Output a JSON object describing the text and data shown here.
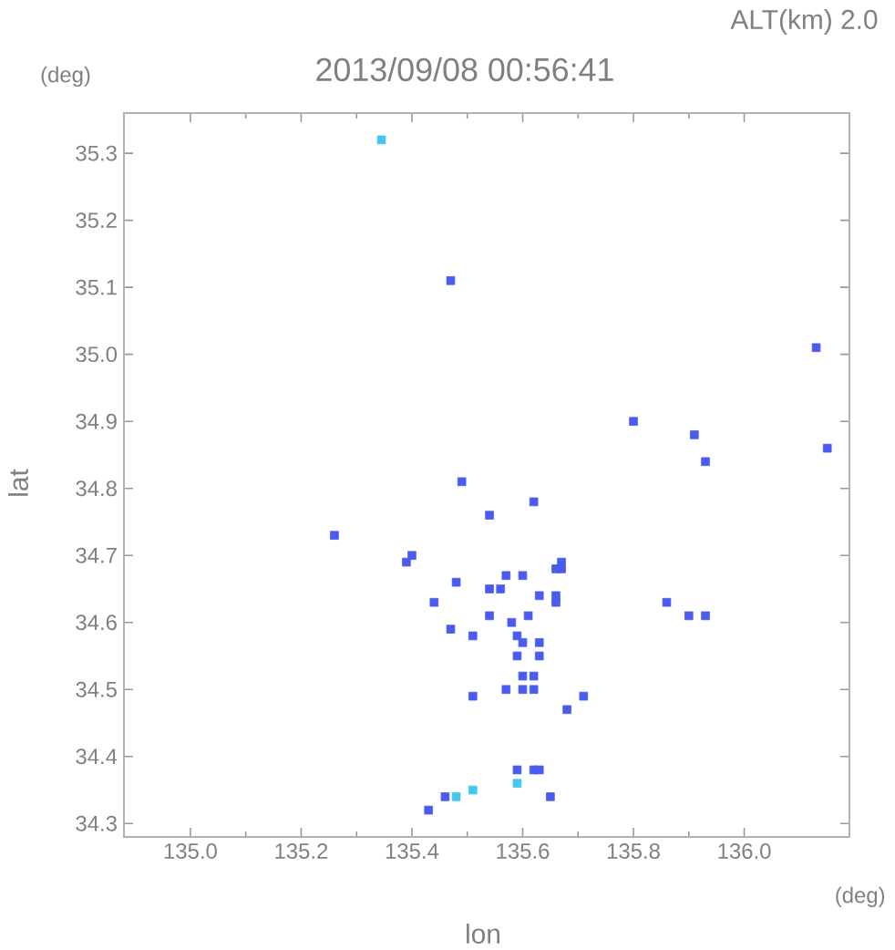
{
  "chart_data": {
    "type": "scatter",
    "title": "2013/09/08 00:56:41",
    "subtitle": "ALT(km) 2.0",
    "xlabel": "lon",
    "ylabel": "lat",
    "annotations": [
      "(deg)",
      "(deg)"
    ],
    "marker": "square",
    "xlim": [
      134.88,
      136.19
    ],
    "ylim": [
      34.28,
      35.36
    ],
    "xticks": [
      {
        "value": 135.0,
        "label": "135.0"
      },
      {
        "value": 135.2,
        "label": "135.2"
      },
      {
        "value": 135.4,
        "label": "135.4"
      },
      {
        "value": 135.6,
        "label": "135.6"
      },
      {
        "value": 135.8,
        "label": "135.8"
      },
      {
        "value": 136.0,
        "label": "136.0"
      }
    ],
    "yticks": [
      {
        "value": 34.3,
        "label": "34.3"
      },
      {
        "value": 34.4,
        "label": "34.4"
      },
      {
        "value": 34.5,
        "label": "34.5"
      },
      {
        "value": 34.6,
        "label": "34.6"
      },
      {
        "value": 34.7,
        "label": "34.7"
      },
      {
        "value": 34.8,
        "label": "34.8"
      },
      {
        "value": 34.9,
        "label": "34.9"
      },
      {
        "value": 35.0,
        "label": "35.0"
      },
      {
        "value": 35.1,
        "label": "35.1"
      },
      {
        "value": 35.2,
        "label": "35.2"
      },
      {
        "value": 35.3,
        "label": "35.3"
      }
    ],
    "series": [
      {
        "color": "#4a5cf0",
        "x": [
          135.47,
          136.13,
          136.15,
          135.26,
          135.8,
          135.91,
          135.93,
          135.49,
          135.62,
          135.54,
          135.4,
          135.39,
          135.48,
          135.57,
          135.6,
          135.67,
          135.66,
          135.67,
          135.54,
          135.56,
          135.63,
          135.66,
          135.66,
          135.44,
          135.86,
          135.9,
          135.93,
          135.61,
          135.54,
          135.58,
          135.47,
          135.51,
          135.59,
          135.63,
          135.6,
          135.59,
          135.63,
          135.6,
          135.62,
          135.6,
          135.62,
          135.57,
          135.51,
          135.68,
          135.71,
          135.62,
          135.63,
          135.59,
          135.65,
          135.46,
          135.43
        ],
        "values": [
          35.11,
          35.01,
          34.86,
          34.73,
          34.9,
          34.88,
          34.84,
          34.81,
          34.78,
          34.76,
          34.7,
          34.69,
          34.66,
          34.67,
          34.67,
          34.69,
          34.68,
          34.68,
          34.65,
          34.65,
          34.64,
          34.64,
          34.63,
          34.63,
          34.63,
          34.61,
          34.61,
          34.61,
          34.61,
          34.6,
          34.59,
          34.58,
          34.58,
          34.57,
          34.57,
          34.55,
          34.55,
          34.52,
          34.52,
          34.5,
          34.5,
          34.5,
          34.49,
          34.47,
          34.49,
          34.38,
          34.38,
          34.38,
          34.34,
          34.34,
          34.32
        ]
      },
      {
        "color": "#40c8f0",
        "x": [
          135.345,
          135.51,
          135.59,
          135.48
        ],
        "values": [
          35.32,
          34.35,
          34.36,
          34.34
        ]
      }
    ]
  }
}
